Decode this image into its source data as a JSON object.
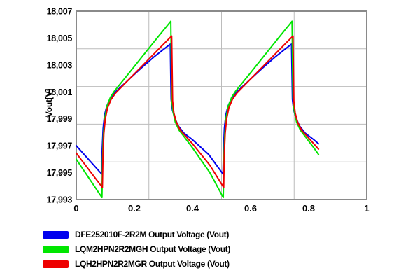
{
  "page": {
    "background": "#ffffff"
  },
  "chart_data": {
    "type": "line",
    "title": "",
    "xlabel": "",
    "ylabel": "Vout[V]",
    "xlim": [
      0,
      1
    ],
    "ylim": [
      17993,
      18007
    ],
    "xticks": {
      "values": [
        0,
        0.2,
        0.4,
        0.6,
        0.8,
        1
      ],
      "labels": [
        "0",
        "0.2",
        "0.4",
        "0.6",
        "0.8",
        "1"
      ]
    },
    "yticks": {
      "values": [
        17993,
        17995,
        17997,
        17999,
        18001,
        18003,
        18005,
        18007
      ],
      "labels": [
        "17,993",
        "17,995",
        "17,997",
        "17,999",
        "18,001",
        "18,003",
        "18,005",
        "18,007"
      ]
    },
    "grid": {
      "x_values": [
        0.25,
        0.5,
        0.75
      ],
      "y_values": [
        17995.8,
        17998.6,
        18001.4,
        18004.2
      ],
      "color": "#bcbcbc",
      "frame_color": "#8a8a8a"
    },
    "legend": {
      "position": "bottom-left"
    },
    "series": [
      {
        "name": "DFE252010F-2R2M Output Voltage (Vout)",
        "color": "#0000ee",
        "points": [
          [
            0,
            17997.0
          ],
          [
            0.0875,
            17994.9
          ],
          [
            0.0895,
            17996.8
          ],
          [
            0.0925,
            17998.3
          ],
          [
            0.0975,
            17999.3
          ],
          [
            0.105,
            17999.95
          ],
          [
            0.1175,
            18000.55
          ],
          [
            0.1325,
            18000.95
          ],
          [
            0.17,
            18001.7
          ],
          [
            0.22,
            18002.7
          ],
          [
            0.27,
            18003.65
          ],
          [
            0.3235,
            18004.55
          ],
          [
            0.3265,
            18000.45
          ],
          [
            0.331,
            17999.65
          ],
          [
            0.339,
            17999.05
          ],
          [
            0.352,
            17998.45
          ],
          [
            0.37,
            17997.95
          ],
          [
            0.4,
            17997.45
          ],
          [
            0.456,
            17996.35
          ],
          [
            0.505,
            17994.9
          ],
          [
            0.507,
            17996.8
          ],
          [
            0.51,
            17998.3
          ],
          [
            0.515,
            17999.3
          ],
          [
            0.5225,
            17999.95
          ],
          [
            0.535,
            18000.55
          ],
          [
            0.55,
            18000.95
          ],
          [
            0.5875,
            18001.7
          ],
          [
            0.6375,
            18002.7
          ],
          [
            0.6875,
            18003.65
          ],
          [
            0.741,
            18004.55
          ],
          [
            0.744,
            18000.45
          ],
          [
            0.7485,
            17999.65
          ],
          [
            0.7565,
            17999.05
          ],
          [
            0.7695,
            17998.45
          ],
          [
            0.7875,
            17997.95
          ],
          [
            0.8175,
            17997.45
          ],
          [
            0.834,
            17997.15
          ]
        ]
      },
      {
        "name": "LQM2HPN2R2MGH Output Voltage (Vout)",
        "color": "#00e600",
        "points": [
          [
            0,
            17996.0
          ],
          [
            0.0885,
            17993.15
          ],
          [
            0.0905,
            17996.0
          ],
          [
            0.0935,
            17997.8
          ],
          [
            0.098,
            17999.0
          ],
          [
            0.105,
            17999.9
          ],
          [
            0.1175,
            18000.6
          ],
          [
            0.131,
            18001.05
          ],
          [
            0.18,
            18002.35
          ],
          [
            0.23,
            18003.7
          ],
          [
            0.28,
            18005.05
          ],
          [
            0.3255,
            18006.25
          ],
          [
            0.3285,
            18000.55
          ],
          [
            0.333,
            17999.55
          ],
          [
            0.341,
            17998.75
          ],
          [
            0.354,
            17998.15
          ],
          [
            0.372,
            17997.65
          ],
          [
            0.4,
            17996.85
          ],
          [
            0.46,
            17995.0
          ],
          [
            0.506,
            17993.15
          ],
          [
            0.508,
            17996.0
          ],
          [
            0.511,
            17997.8
          ],
          [
            0.5155,
            17999.0
          ],
          [
            0.5225,
            17999.9
          ],
          [
            0.535,
            18000.6
          ],
          [
            0.5485,
            18001.05
          ],
          [
            0.5975,
            18002.35
          ],
          [
            0.6475,
            18003.7
          ],
          [
            0.6975,
            18005.05
          ],
          [
            0.743,
            18006.25
          ],
          [
            0.746,
            18000.55
          ],
          [
            0.7505,
            17999.55
          ],
          [
            0.7585,
            17998.75
          ],
          [
            0.7715,
            17998.15
          ],
          [
            0.7895,
            17997.65
          ],
          [
            0.8175,
            17996.85
          ],
          [
            0.834,
            17996.35
          ]
        ]
      },
      {
        "name": "LQH2HPN2R2MGR Output Voltage (Vout)",
        "color": "#ee0000",
        "points": [
          [
            0,
            17996.45
          ],
          [
            0.09,
            17993.9
          ],
          [
            0.092,
            17996.3
          ],
          [
            0.095,
            17997.9
          ],
          [
            0.1,
            17999.0
          ],
          [
            0.1075,
            17999.8
          ],
          [
            0.12,
            18000.45
          ],
          [
            0.135,
            18000.9
          ],
          [
            0.18,
            18001.9
          ],
          [
            0.23,
            18003.0
          ],
          [
            0.28,
            18004.1
          ],
          [
            0.3285,
            18005.15
          ],
          [
            0.3315,
            18000.35
          ],
          [
            0.336,
            17999.45
          ],
          [
            0.3445,
            17998.75
          ],
          [
            0.358,
            17998.15
          ],
          [
            0.375,
            17997.75
          ],
          [
            0.4,
            17997.15
          ],
          [
            0.46,
            17995.55
          ],
          [
            0.5075,
            17993.9
          ],
          [
            0.5095,
            17996.3
          ],
          [
            0.5125,
            17997.9
          ],
          [
            0.5175,
            17999.0
          ],
          [
            0.525,
            17999.8
          ],
          [
            0.5375,
            18000.45
          ],
          [
            0.5525,
            18000.9
          ],
          [
            0.5975,
            18001.9
          ],
          [
            0.6475,
            18003.0
          ],
          [
            0.6975,
            18004.1
          ],
          [
            0.746,
            18005.15
          ],
          [
            0.749,
            18000.35
          ],
          [
            0.7535,
            17999.45
          ],
          [
            0.762,
            17998.75
          ],
          [
            0.7755,
            17998.15
          ],
          [
            0.7925,
            17997.75
          ],
          [
            0.8175,
            17997.15
          ],
          [
            0.834,
            17996.75
          ]
        ]
      }
    ]
  }
}
